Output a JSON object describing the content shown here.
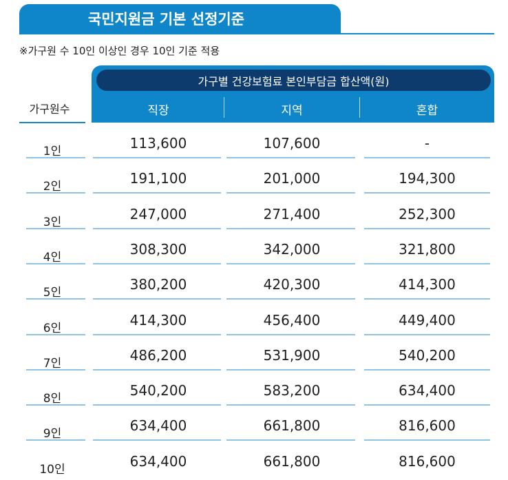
{
  "title": "국민지원금 기본 선정기준",
  "note": "※가구원 수 10인 이상인 경우 10인 기준 적용",
  "table": {
    "group_header": "가구별 건강보험료 본인부담금 합산액(원)",
    "row_header": "가구원수",
    "columns": [
      "직장",
      "지역",
      "혼합"
    ],
    "rows": [
      {
        "label": "1인",
        "values": [
          "113,600",
          "107,600",
          "-"
        ]
      },
      {
        "label": "2인",
        "values": [
          "191,100",
          "201,000",
          "194,300"
        ]
      },
      {
        "label": "3인",
        "values": [
          "247,000",
          "271,400",
          "252,300"
        ]
      },
      {
        "label": "4인",
        "values": [
          "308,300",
          "342,000",
          "321,800"
        ]
      },
      {
        "label": "5인",
        "values": [
          "380,200",
          "420,300",
          "414,300"
        ]
      },
      {
        "label": "6인",
        "values": [
          "414,300",
          "456,400",
          "449,400"
        ]
      },
      {
        "label": "7인",
        "values": [
          "486,200",
          "531,900",
          "540,200"
        ]
      },
      {
        "label": "8인",
        "values": [
          "540,200",
          "583,200",
          "634,400"
        ]
      },
      {
        "label": "9인",
        "values": [
          "634,400",
          "661,800",
          "816,600"
        ]
      },
      {
        "label": "10인",
        "values": [
          "634,400",
          "661,800",
          "816,600"
        ]
      }
    ]
  }
}
